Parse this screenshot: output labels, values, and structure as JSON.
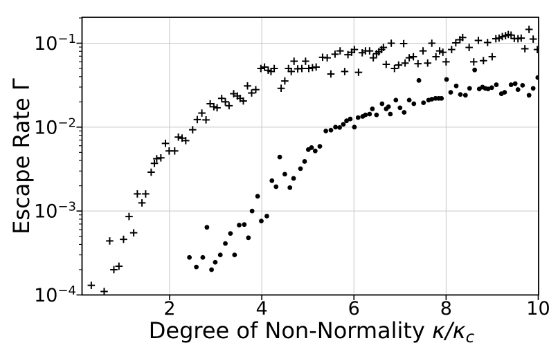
{
  "chart_data": {
    "type": "scatter",
    "title": "",
    "xlabel": "Degree of Non-Normality κ/κc",
    "xlabel_text": "Degree of Non-Normality ",
    "xlabel_math": "κ/κ",
    "xlabel_sub": "c",
    "ylabel": "Escape Rate Γ",
    "xscale": "linear",
    "yscale": "log",
    "xlim": [
      0.1,
      10.0
    ],
    "ylim": [
      0.0001,
      0.2
    ],
    "grid": true,
    "legend_position": "none",
    "x_ticks": [
      2,
      4,
      6,
      8,
      10
    ],
    "y_ticks": [
      {
        "value": 0.1,
        "base": "10",
        "exponent": "−1"
      },
      {
        "value": 0.01,
        "base": "10",
        "exponent": "−2"
      },
      {
        "value": 0.001,
        "base": "10",
        "exponent": "−3"
      },
      {
        "value": 0.0001,
        "base": "10",
        "exponent": "−4"
      }
    ],
    "colors": {
      "marker": "#000000",
      "grid": "#c6c6c6",
      "spine": "#000000",
      "text": "#000000"
    },
    "series": [
      {
        "name": "plus-markers",
        "marker": "plus",
        "points": [
          [
            0.3,
            0.00013
          ],
          [
            0.58,
            0.00011
          ],
          [
            0.7,
            0.00044
          ],
          [
            0.79,
            0.0002
          ],
          [
            0.9,
            0.00022
          ],
          [
            1.0,
            0.00046
          ],
          [
            1.12,
            0.00086
          ],
          [
            1.22,
            0.00055
          ],
          [
            1.3,
            0.0016
          ],
          [
            1.4,
            0.00125
          ],
          [
            1.48,
            0.0016
          ],
          [
            1.6,
            0.0029
          ],
          [
            1.67,
            0.0037
          ],
          [
            1.72,
            0.0042
          ],
          [
            1.81,
            0.0043
          ],
          [
            1.91,
            0.0064
          ],
          [
            1.99,
            0.0052
          ],
          [
            2.11,
            0.0052
          ],
          [
            2.19,
            0.0076
          ],
          [
            2.27,
            0.0074
          ],
          [
            2.35,
            0.0069
          ],
          [
            2.5,
            0.0093
          ],
          [
            2.6,
            0.0123
          ],
          [
            2.7,
            0.0147
          ],
          [
            2.79,
            0.0122
          ],
          [
            2.88,
            0.019
          ],
          [
            2.96,
            0.0175
          ],
          [
            3.03,
            0.017
          ],
          [
            3.13,
            0.022
          ],
          [
            3.21,
            0.02
          ],
          [
            3.29,
            0.018
          ],
          [
            3.39,
            0.025
          ],
          [
            3.47,
            0.0235
          ],
          [
            3.53,
            0.022
          ],
          [
            3.6,
            0.0205
          ],
          [
            3.69,
            0.031
          ],
          [
            3.78,
            0.0255
          ],
          [
            3.87,
            0.028
          ],
          [
            3.98,
            0.05
          ],
          [
            4.06,
            0.052
          ],
          [
            4.14,
            0.0475
          ],
          [
            4.2,
            0.046
          ],
          [
            4.27,
            0.05
          ],
          [
            4.42,
            0.029
          ],
          [
            4.5,
            0.0355
          ],
          [
            4.58,
            0.05
          ],
          [
            4.64,
            0.046
          ],
          [
            4.7,
            0.061
          ],
          [
            4.78,
            0.0495
          ],
          [
            4.87,
            0.05
          ],
          [
            4.95,
            0.061
          ],
          [
            5.02,
            0.05
          ],
          [
            5.1,
            0.051
          ],
          [
            5.18,
            0.052
          ],
          [
            5.32,
            0.068
          ],
          [
            5.42,
            0.067
          ],
          [
            5.5,
            0.043
          ],
          [
            5.59,
            0.074
          ],
          [
            5.7,
            0.081
          ],
          [
            5.8,
            0.046
          ],
          [
            5.87,
            0.073
          ],
          [
            5.95,
            0.078
          ],
          [
            6.01,
            0.084
          ],
          [
            6.1,
            0.045
          ],
          [
            6.18,
            0.077
          ],
          [
            6.25,
            0.081
          ],
          [
            6.34,
            0.081
          ],
          [
            6.42,
            0.067
          ],
          [
            6.49,
            0.075
          ],
          [
            6.54,
            0.079
          ],
          [
            6.6,
            0.084
          ],
          [
            6.64,
            0.089
          ],
          [
            6.7,
            0.056
          ],
          [
            6.81,
            0.1
          ],
          [
            6.88,
            0.05
          ],
          [
            6.97,
            0.055
          ],
          [
            7.08,
            0.099
          ],
          [
            7.11,
            0.058
          ],
          [
            7.2,
            0.067
          ],
          [
            7.29,
            0.069
          ],
          [
            7.39,
            0.057
          ],
          [
            7.5,
            0.081
          ],
          [
            7.6,
            0.058
          ],
          [
            7.69,
            0.1
          ],
          [
            7.78,
            0.069
          ],
          [
            7.86,
            0.081
          ],
          [
            7.93,
            0.078
          ],
          [
            8.0,
            0.06
          ],
          [
            8.12,
            0.084
          ],
          [
            8.21,
            0.101
          ],
          [
            8.3,
            0.11
          ],
          [
            8.36,
            0.117
          ],
          [
            8.5,
            0.089
          ],
          [
            8.6,
            0.06
          ],
          [
            8.7,
            0.108
          ],
          [
            8.81,
            0.062
          ],
          [
            8.9,
            0.102
          ],
          [
            9.0,
            0.069
          ],
          [
            9.08,
            0.113
          ],
          [
            9.15,
            0.115
          ],
          [
            9.22,
            0.12
          ],
          [
            9.29,
            0.123
          ],
          [
            9.35,
            0.127
          ],
          [
            9.41,
            0.125
          ],
          [
            9.48,
            0.114
          ],
          [
            9.56,
            0.113
          ],
          [
            9.63,
            0.115
          ],
          [
            9.71,
            0.086
          ],
          [
            9.8,
            0.146
          ],
          [
            9.89,
            0.112
          ],
          [
            9.98,
            0.084
          ]
        ]
      },
      {
        "name": "dot-markers",
        "marker": "dot",
        "points": [
          [
            2.43,
            0.00028
          ],
          [
            2.58,
            0.000215
          ],
          [
            2.72,
            0.00028
          ],
          [
            2.81,
            0.00064
          ],
          [
            2.91,
            0.0002
          ],
          [
            2.99,
            0.000245
          ],
          [
            3.1,
            0.0003
          ],
          [
            3.21,
            0.00041
          ],
          [
            3.32,
            0.00054
          ],
          [
            3.41,
            0.0003
          ],
          [
            3.51,
            0.00068
          ],
          [
            3.62,
            0.00069
          ],
          [
            3.71,
            0.00048
          ],
          [
            3.79,
            0.001
          ],
          [
            3.91,
            0.0015
          ],
          [
            3.99,
            0.00076
          ],
          [
            4.11,
            0.00087
          ],
          [
            4.22,
            0.0023
          ],
          [
            4.31,
            0.00195
          ],
          [
            4.39,
            0.0044
          ],
          [
            4.5,
            0.00275
          ],
          [
            4.61,
            0.0019
          ],
          [
            4.69,
            0.00245
          ],
          [
            4.84,
            0.0032
          ],
          [
            4.93,
            0.0039
          ],
          [
            5.01,
            0.0054
          ],
          [
            5.08,
            0.0057
          ],
          [
            5.16,
            0.0052
          ],
          [
            5.26,
            0.0059
          ],
          [
            5.39,
            0.009
          ],
          [
            5.5,
            0.0092
          ],
          [
            5.6,
            0.01
          ],
          [
            5.69,
            0.0099
          ],
          [
            5.77,
            0.0108
          ],
          [
            5.84,
            0.0119
          ],
          [
            5.92,
            0.0125
          ],
          [
            6.01,
            0.01
          ],
          [
            6.09,
            0.013
          ],
          [
            6.19,
            0.0134
          ],
          [
            6.25,
            0.014
          ],
          [
            6.34,
            0.0143
          ],
          [
            6.4,
            0.0165
          ],
          [
            6.49,
            0.014
          ],
          [
            6.61,
            0.019
          ],
          [
            6.7,
            0.0165
          ],
          [
            6.75,
            0.0175
          ],
          [
            6.79,
            0.0143
          ],
          [
            6.91,
            0.021
          ],
          [
            7.0,
            0.017
          ],
          [
            7.09,
            0.015
          ],
          [
            7.2,
            0.021
          ],
          [
            7.3,
            0.019
          ],
          [
            7.41,
            0.036
          ],
          [
            7.51,
            0.0195
          ],
          [
            7.62,
            0.021
          ],
          [
            7.69,
            0.0215
          ],
          [
            7.77,
            0.022
          ],
          [
            7.84,
            0.022
          ],
          [
            7.9,
            0.022
          ],
          [
            8.01,
            0.037
          ],
          [
            8.1,
            0.026
          ],
          [
            8.22,
            0.031
          ],
          [
            8.31,
            0.0245
          ],
          [
            8.42,
            0.024
          ],
          [
            8.51,
            0.029
          ],
          [
            8.62,
            0.048
          ],
          [
            8.72,
            0.0285
          ],
          [
            8.79,
            0.03
          ],
          [
            8.85,
            0.029
          ],
          [
            8.91,
            0.0285
          ],
          [
            8.99,
            0.0295
          ],
          [
            9.09,
            0.032
          ],
          [
            9.2,
            0.025
          ],
          [
            9.27,
            0.026
          ],
          [
            9.41,
            0.032
          ],
          [
            9.5,
            0.033
          ],
          [
            9.56,
            0.028
          ],
          [
            9.66,
            0.0315
          ],
          [
            9.8,
            0.024
          ],
          [
            9.89,
            0.029
          ],
          [
            9.99,
            0.039
          ]
        ]
      }
    ]
  }
}
